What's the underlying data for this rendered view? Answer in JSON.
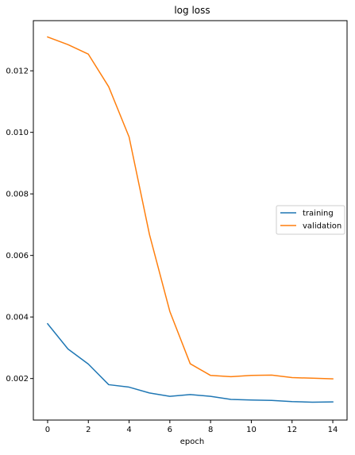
{
  "chart_data": {
    "type": "line",
    "title": "log loss",
    "xlabel": "epoch",
    "ylabel": "",
    "x": [
      0,
      1,
      2,
      3,
      4,
      5,
      6,
      7,
      8,
      9,
      10,
      11,
      12,
      13,
      14
    ],
    "series": [
      {
        "name": "training",
        "color": "#1f77b4",
        "values": [
          0.00378,
          0.00296,
          0.00247,
          0.0018,
          0.00172,
          0.00153,
          0.00142,
          0.00148,
          0.00142,
          0.00132,
          0.0013,
          0.00129,
          0.00125,
          0.00123,
          0.00124
        ]
      },
      {
        "name": "validation",
        "color": "#ff7f0e",
        "values": [
          0.0131,
          0.01285,
          0.01254,
          0.01148,
          0.00985,
          0.00668,
          0.00418,
          0.00248,
          0.0021,
          0.00206,
          0.0021,
          0.00211,
          0.00203,
          0.00201,
          0.00199
        ]
      }
    ],
    "xlim": [
      -0.7,
      14.7
    ],
    "ylim": [
      0.00065,
      0.01363
    ],
    "x_ticks": [
      0,
      2,
      4,
      6,
      8,
      10,
      12,
      14
    ],
    "x_tick_labels": [
      "0",
      "2",
      "4",
      "6",
      "8",
      "10",
      "12",
      "14"
    ],
    "y_ticks": [
      0.002,
      0.004,
      0.006,
      0.008,
      0.01,
      0.012
    ],
    "y_tick_labels": [
      "0.002",
      "0.004",
      "0.006",
      "0.008",
      "0.010",
      "0.012"
    ],
    "grid": false,
    "legend_position": "center-right"
  }
}
